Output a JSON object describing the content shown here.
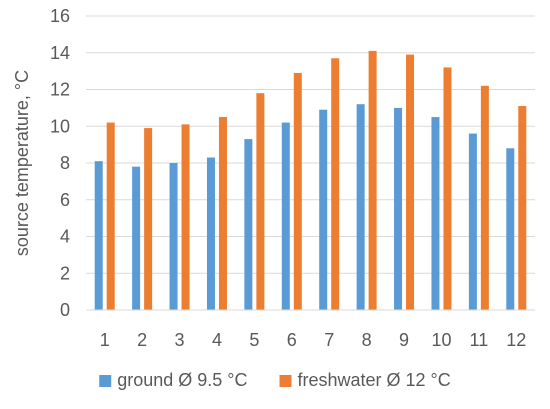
{
  "chart_data": {
    "type": "bar",
    "categories": [
      "1",
      "2",
      "3",
      "4",
      "5",
      "6",
      "7",
      "8",
      "9",
      "10",
      "11",
      "12"
    ],
    "series": [
      {
        "name": "ground Ø 9.5 °C",
        "color": "#5B9BD5",
        "values": [
          8.1,
          7.8,
          8.0,
          8.3,
          9.3,
          10.2,
          10.9,
          11.2,
          11.0,
          10.5,
          9.6,
          8.8
        ]
      },
      {
        "name": "freshwater Ø 12 °C",
        "color": "#ED7D31",
        "values": [
          10.2,
          9.9,
          10.1,
          10.5,
          11.8,
          12.9,
          13.7,
          14.1,
          13.9,
          13.2,
          12.2,
          11.1
        ]
      }
    ],
    "title": "",
    "xlabel": "",
    "ylabel": "source temperature,  °C",
    "ylim": [
      0,
      16
    ],
    "yticks": [
      "0",
      "2",
      "4",
      "6",
      "8",
      "10",
      "12",
      "14",
      "16"
    ],
    "grid": true,
    "legend": "bottom"
  }
}
